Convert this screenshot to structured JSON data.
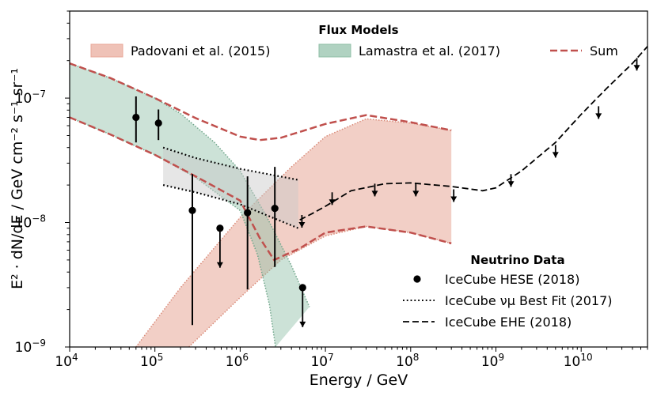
{
  "chart_data": {
    "type": "line",
    "xscale": "log",
    "yscale": "log",
    "xlim": [
      10000,
      60000000000
    ],
    "ylim": [
      1e-09,
      5e-07
    ],
    "xlabel": "Energy / GeV",
    "ylabel": "E² · dN/dE / GeV cm⁻² s⁻¹ sr⁻¹",
    "x_ticks": [
      {
        "value": 10000,
        "base": "10",
        "exp": "4"
      },
      {
        "value": 100000,
        "base": "10",
        "exp": "5"
      },
      {
        "value": 1000000,
        "base": "10",
        "exp": "6"
      },
      {
        "value": 10000000,
        "base": "10",
        "exp": "7"
      },
      {
        "value": 100000000,
        "base": "10",
        "exp": "8"
      },
      {
        "value": 1000000000,
        "base": "10",
        "exp": "9"
      },
      {
        "value": 10000000000,
        "base": "10",
        "exp": "10"
      }
    ],
    "y_ticks": [
      {
        "value": 1e-09,
        "base": "10",
        "exp": "−9"
      },
      {
        "value": 1e-08,
        "base": "10",
        "exp": "−8"
      },
      {
        "value": 1e-07,
        "base": "10",
        "exp": "−7"
      }
    ],
    "legends": {
      "flux": {
        "title": "Flux Models",
        "entries": [
          {
            "label": "Padovani et al. (2015)",
            "kind": "band",
            "color": "#e8a898"
          },
          {
            "label": "Lamastra et al. (2017)",
            "kind": "band",
            "color": "#8fbfa6"
          },
          {
            "label": "Sum",
            "kind": "dashed",
            "color": "#c0504d"
          }
        ]
      },
      "neutrino": {
        "title": "Neutrino Data",
        "entries": [
          {
            "label": "IceCube HESE (2018)",
            "kind": "marker"
          },
          {
            "label": "IceCube νμ Best Fit (2017)",
            "kind": "dotted"
          },
          {
            "label": "IceCube EHE (2018)",
            "kind": "dashed"
          }
        ]
      }
    },
    "series": {
      "padovani_band": {
        "name": "Padovani et al. (2015)",
        "color": "#e8a898",
        "edge": "#d98a78",
        "upper": [
          [
            60000,
            1e-09
          ],
          [
            200000,
            3e-09
          ],
          [
            1000000,
            1.1e-08
          ],
          [
            4000000,
            2.8e-08
          ],
          [
            10000000,
            4.9e-08
          ],
          [
            30000000,
            6.8e-08
          ],
          [
            100000000,
            6.3e-08
          ],
          [
            300000000,
            5.5e-08
          ]
        ],
        "lower": [
          [
            250000,
            1e-09
          ],
          [
            1000000,
            2.5e-09
          ],
          [
            3000000,
            5e-09
          ],
          [
            10000000,
            7.8e-09
          ],
          [
            30000000,
            9.3e-09
          ],
          [
            100000000,
            8.3e-09
          ],
          [
            300000000,
            6.8e-09
          ]
        ]
      },
      "lamastra_band": {
        "name": "Lamastra et al. (2017)",
        "color": "#8fbfa6",
        "edge": "#6fa58a",
        "upper": [
          [
            10000,
            1.9e-07
          ],
          [
            30000,
            1.45e-07
          ],
          [
            100000,
            1e-07
          ],
          [
            200000,
            7.5e-08
          ],
          [
            500000,
            4.4e-08
          ],
          [
            1000000,
            2.6e-08
          ],
          [
            2000000,
            1.15e-08
          ],
          [
            4000000,
            4.5e-09
          ],
          [
            6500000,
            2.1e-09
          ]
        ],
        "lower": [
          [
            10000,
            7e-08
          ],
          [
            30000,
            5.1e-08
          ],
          [
            100000,
            3.5e-08
          ],
          [
            300000,
            2.3e-08
          ],
          [
            1000000,
            1.25e-08
          ],
          [
            1600000,
            5.5e-09
          ],
          [
            2200000,
            2.2e-09
          ],
          [
            2600000,
            1e-09
          ]
        ]
      },
      "sum_upper": {
        "name": "Sum",
        "color": "#c0504d",
        "points": [
          [
            10000,
            1.9e-07
          ],
          [
            30000,
            1.45e-07
          ],
          [
            100000,
            1e-07
          ],
          [
            300000,
            6.9e-08
          ],
          [
            1000000,
            4.9e-08
          ],
          [
            1700000,
            4.6e-08
          ],
          [
            3000000,
            4.8e-08
          ],
          [
            10000000,
            6.2e-08
          ],
          [
            30000000,
            7.3e-08
          ],
          [
            100000000,
            6.4e-08
          ],
          [
            300000000,
            5.5e-08
          ]
        ]
      },
      "sum_lower": {
        "name": "Sum",
        "color": "#c0504d",
        "points": [
          [
            10000,
            7e-08
          ],
          [
            30000,
            5.1e-08
          ],
          [
            100000,
            3.5e-08
          ],
          [
            300000,
            2.35e-08
          ],
          [
            1000000,
            1.5e-08
          ],
          [
            1700000,
            7.5e-09
          ],
          [
            2500000,
            5e-09
          ],
          [
            5000000,
            6.2e-09
          ],
          [
            10000000,
            8.3e-09
          ],
          [
            30000000,
            9.3e-09
          ],
          [
            100000000,
            8.3e-09
          ],
          [
            300000000,
            6.8e-09
          ]
        ]
      },
      "numu_band": {
        "name": "IceCube νμ Best Fit (2017)",
        "upper": [
          [
            125000,
            4e-08
          ],
          [
            300000,
            3.3e-08
          ],
          [
            1000000,
            2.7e-08
          ],
          [
            4800000,
            2.2e-08
          ]
        ],
        "lower": [
          [
            125000,
            2e-08
          ],
          [
            300000,
            1.75e-08
          ],
          [
            1000000,
            1.4e-08
          ],
          [
            4800000,
            9e-09
          ]
        ]
      },
      "ehe_limit": {
        "name": "IceCube EHE (2018)",
        "points": [
          [
            5000000,
            1.05e-08
          ],
          [
            7000000,
            1.18e-08
          ],
          [
            10000000,
            1.35e-08
          ],
          [
            20000000,
            1.8e-08
          ],
          [
            50000000,
            2.05e-08
          ],
          [
            100000000,
            2.08e-08
          ],
          [
            300000000,
            1.95e-08
          ],
          [
            700000000,
            1.8e-08
          ],
          [
            1000000000,
            1.9e-08
          ],
          [
            2000000000,
            2.6e-08
          ],
          [
            5000000000,
            4.4e-08
          ],
          [
            10000000000,
            7.4e-08
          ],
          [
            20000000000,
            1.2e-07
          ],
          [
            40000000000,
            1.9e-07
          ],
          [
            60000000000,
            2.6e-07
          ]
        ],
        "arrows": [
          [
            5300000,
            1.15e-08
          ],
          [
            12000000,
            1.75e-08
          ],
          [
            38000000,
            2.05e-08
          ],
          [
            115000000,
            2.05e-08
          ],
          [
            320000000,
            1.85e-08
          ],
          [
            1500000000,
            2.45e-08
          ],
          [
            5000000000,
            4.2e-08
          ],
          [
            16000000000,
            8.6e-08
          ],
          [
            45000000000,
            2.1e-07
          ]
        ]
      },
      "hese": {
        "name": "IceCube HESE (2018)",
        "points": [
          {
            "x": 60000,
            "y": 7e-08,
            "lo": 4.4e-08,
            "hi": 1.03e-07
          },
          {
            "x": 110000,
            "y": 6.3e-08,
            "lo": 4.6e-08,
            "hi": 8.1e-08
          },
          {
            "x": 275000,
            "y": 1.25e-08,
            "lo": 1.5e-09,
            "hi": 2.45e-08
          },
          {
            "x": 1220000,
            "y": 1.2e-08,
            "lo": 2.9e-09,
            "hi": 2.35e-08
          },
          {
            "x": 2550000,
            "y": 1.3e-08,
            "lo": 4.4e-09,
            "hi": 2.8e-08
          }
        ],
        "upper_limits": [
          {
            "x": 580000,
            "y": 9e-09
          },
          {
            "x": 5400000,
            "y": 3e-09
          }
        ]
      }
    }
  }
}
